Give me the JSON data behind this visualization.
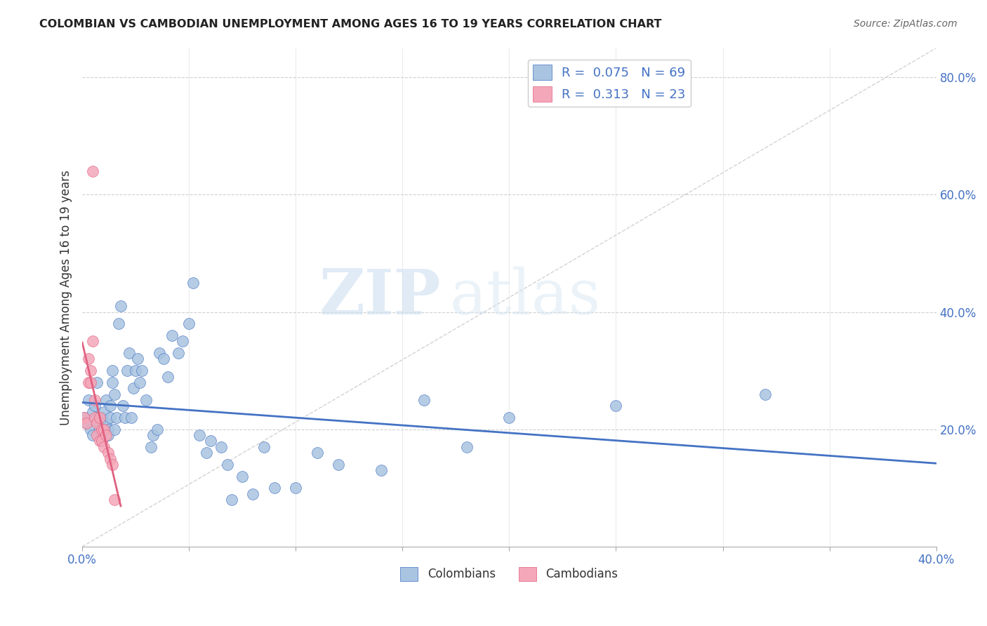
{
  "title": "COLOMBIAN VS CAMBODIAN UNEMPLOYMENT AMONG AGES 16 TO 19 YEARS CORRELATION CHART",
  "source": "Source: ZipAtlas.com",
  "ylabel": "Unemployment Among Ages 16 to 19 years",
  "xlim": [
    0.0,
    0.4
  ],
  "ylim": [
    0.0,
    0.85
  ],
  "yticks_right": [
    0.2,
    0.4,
    0.6,
    0.8
  ],
  "ytick_labels_right": [
    "20.0%",
    "40.0%",
    "60.0%",
    "80.0%"
  ],
  "colombians_x": [
    0.001,
    0.002,
    0.003,
    0.004,
    0.005,
    0.005,
    0.006,
    0.007,
    0.007,
    0.008,
    0.008,
    0.009,
    0.009,
    0.01,
    0.01,
    0.011,
    0.011,
    0.012,
    0.012,
    0.013,
    0.013,
    0.014,
    0.014,
    0.015,
    0.015,
    0.016,
    0.017,
    0.018,
    0.019,
    0.02,
    0.021,
    0.022,
    0.023,
    0.024,
    0.025,
    0.026,
    0.027,
    0.028,
    0.03,
    0.032,
    0.033,
    0.035,
    0.036,
    0.038,
    0.04,
    0.042,
    0.045,
    0.047,
    0.05,
    0.052,
    0.055,
    0.058,
    0.06,
    0.065,
    0.068,
    0.07,
    0.075,
    0.08,
    0.085,
    0.09,
    0.1,
    0.11,
    0.12,
    0.14,
    0.16,
    0.18,
    0.2,
    0.25,
    0.32
  ],
  "colombians_y": [
    0.22,
    0.21,
    0.25,
    0.2,
    0.19,
    0.23,
    0.24,
    0.22,
    0.28,
    0.2,
    0.21,
    0.22,
    0.18,
    0.2,
    0.23,
    0.21,
    0.25,
    0.2,
    0.19,
    0.22,
    0.24,
    0.28,
    0.3,
    0.2,
    0.26,
    0.22,
    0.38,
    0.41,
    0.24,
    0.22,
    0.3,
    0.33,
    0.22,
    0.27,
    0.3,
    0.32,
    0.28,
    0.3,
    0.25,
    0.17,
    0.19,
    0.2,
    0.33,
    0.32,
    0.29,
    0.36,
    0.33,
    0.35,
    0.38,
    0.45,
    0.19,
    0.16,
    0.18,
    0.17,
    0.14,
    0.08,
    0.12,
    0.09,
    0.17,
    0.1,
    0.1,
    0.16,
    0.14,
    0.13,
    0.25,
    0.17,
    0.22,
    0.24,
    0.26
  ],
  "cambodians_x": [
    0.001,
    0.002,
    0.003,
    0.003,
    0.004,
    0.004,
    0.005,
    0.005,
    0.006,
    0.006,
    0.007,
    0.007,
    0.008,
    0.008,
    0.009,
    0.009,
    0.01,
    0.01,
    0.011,
    0.012,
    0.013,
    0.014,
    0.015
  ],
  "cambodians_y": [
    0.22,
    0.21,
    0.32,
    0.28,
    0.3,
    0.28,
    0.64,
    0.35,
    0.25,
    0.22,
    0.21,
    0.19,
    0.22,
    0.18,
    0.2,
    0.18,
    0.2,
    0.17,
    0.19,
    0.16,
    0.15,
    0.14,
    0.08
  ],
  "colombian_color": "#a8c4e0",
  "cambodian_color": "#f4a7b9",
  "colombian_trend_color": "#4472c4",
  "cambodian_trend_color": "#e06080",
  "diagonal_color": "#c0c0c0",
  "r_colombian": 0.075,
  "n_colombian": 69,
  "r_cambodian": 0.313,
  "n_cambodian": 23,
  "watermark_zip": "ZIP",
  "watermark_atlas": "atlas",
  "background_color": "#ffffff",
  "grid_color": "#d0d0d0"
}
